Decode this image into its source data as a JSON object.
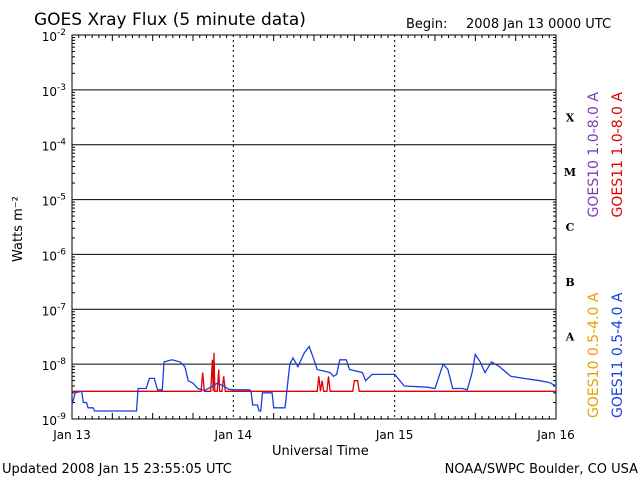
{
  "header": {
    "title": "GOES Xray Flux (5 minute data)",
    "begin_label": "Begin:",
    "begin_value": "2008 Jan 13 0000 UTC"
  },
  "footer": {
    "updated": "Updated 2008 Jan 15 23:55:05 UTC",
    "credit": "NOAA/SWPC Boulder, CO USA"
  },
  "chart_data": {
    "type": "line",
    "title": "GOES Xray Flux (5 minute data)",
    "xlabel": "Universal Time",
    "ylabel": "Watts m⁻²",
    "yscale": "log",
    "ylim": [
      1e-09,
      0.01
    ],
    "xlim": [
      0,
      3
    ],
    "x_ticks": [
      {
        "x": 0,
        "label": "Jan 13"
      },
      {
        "x": 1,
        "label": "Jan 14"
      },
      {
        "x": 2,
        "label": "Jan 15"
      },
      {
        "x": 3,
        "label": "Jan 16"
      }
    ],
    "y_ticks": [
      {
        "exp": -9,
        "base": "10",
        "sup": "-9"
      },
      {
        "exp": -8,
        "base": "10",
        "sup": "-8"
      },
      {
        "exp": -7,
        "base": "10",
        "sup": "-7"
      },
      {
        "exp": -6,
        "base": "10",
        "sup": "-6"
      },
      {
        "exp": -5,
        "base": "10",
        "sup": "-5"
      },
      {
        "exp": -4,
        "base": "10",
        "sup": "-4"
      },
      {
        "exp": -3,
        "base": "10",
        "sup": "-3"
      },
      {
        "exp": -2,
        "base": "10",
        "sup": "-2"
      }
    ],
    "flare_classes": [
      {
        "label": "A",
        "exp": -7.5
      },
      {
        "label": "B",
        "exp": -6.5
      },
      {
        "label": "C",
        "exp": -5.5
      },
      {
        "label": "M",
        "exp": -4.5
      },
      {
        "label": "X",
        "exp": -3.5
      }
    ],
    "grid": true,
    "legend_placement": "right",
    "legend": [
      {
        "text": "GOES10 1.0-8.0 A",
        "color": "#7b3fb3",
        "group": "upper",
        "col": 0
      },
      {
        "text": "GOES11 1.0-8.0 A",
        "color": "#e00000",
        "group": "upper",
        "col": 1
      },
      {
        "text": "GOES10 0.5-4.0 A",
        "color": "#e8a000",
        "group": "lower",
        "col": 0
      },
      {
        "text": "GOES11 0.5-4.0 A",
        "color": "#1a3fe0",
        "group": "lower",
        "col": 1
      }
    ],
    "series": [
      {
        "name": "GOES11 1.0-8.0 A",
        "color": "#e00000",
        "points": [
          [
            0.0,
            3.2e-09
          ],
          [
            0.8,
            3.2e-09
          ],
          [
            0.81,
            7e-09
          ],
          [
            0.82,
            3.2e-09
          ],
          [
            0.86,
            3.2e-09
          ],
          [
            0.87,
            1.2e-08
          ],
          [
            0.875,
            3.2e-09
          ],
          [
            0.88,
            1.6e-08
          ],
          [
            0.885,
            3.2e-09
          ],
          [
            0.9,
            3.2e-09
          ],
          [
            0.91,
            8e-09
          ],
          [
            0.915,
            3.2e-09
          ],
          [
            0.93,
            3.2e-09
          ],
          [
            0.94,
            6e-09
          ],
          [
            0.95,
            3.2e-09
          ],
          [
            1.0,
            3.2e-09
          ],
          [
            1.05,
            3.2e-09
          ],
          [
            1.52,
            3.2e-09
          ],
          [
            1.53,
            6e-09
          ],
          [
            1.54,
            3.2e-09
          ],
          [
            1.55,
            5e-09
          ],
          [
            1.56,
            3.2e-09
          ],
          [
            1.58,
            3.2e-09
          ],
          [
            1.59,
            6e-09
          ],
          [
            1.6,
            3.2e-09
          ],
          [
            1.74,
            3.2e-09
          ],
          [
            1.75,
            5e-09
          ],
          [
            1.77,
            5e-09
          ],
          [
            1.78,
            3.2e-09
          ],
          [
            3.0,
            3.2e-09
          ]
        ]
      },
      {
        "name": "GOES11 0.5-4.0 A",
        "color": "#1a3fe0",
        "points": [
          [
            0.0,
            1.8e-09
          ],
          [
            0.02,
            3e-09
          ],
          [
            0.06,
            3.2e-09
          ],
          [
            0.07,
            2e-09
          ],
          [
            0.09,
            2e-09
          ],
          [
            0.1,
            1.6e-09
          ],
          [
            0.13,
            1.6e-09
          ],
          [
            0.14,
            1.4e-09
          ],
          [
            0.4,
            1.4e-09
          ],
          [
            0.41,
            3.6e-09
          ],
          [
            0.46,
            3.6e-09
          ],
          [
            0.48,
            5.5e-09
          ],
          [
            0.51,
            5.5e-09
          ],
          [
            0.53,
            3.4e-09
          ],
          [
            0.56,
            3.4e-09
          ],
          [
            0.57,
            1.1e-08
          ],
          [
            0.62,
            1.2e-08
          ],
          [
            0.67,
            1.1e-08
          ],
          [
            0.7,
            9e-09
          ],
          [
            0.72,
            5e-09
          ],
          [
            0.75,
            4.5e-09
          ],
          [
            0.78,
            3.6e-09
          ],
          [
            0.82,
            3.3e-09
          ],
          [
            0.86,
            3.8e-09
          ],
          [
            0.9,
            4.5e-09
          ],
          [
            0.94,
            4e-09
          ],
          [
            0.97,
            3.5e-09
          ],
          [
            1.0,
            3.4e-09
          ],
          [
            1.1,
            3.4e-09
          ],
          [
            1.11,
            3.2e-09
          ],
          [
            1.12,
            1.8e-09
          ],
          [
            1.15,
            1.8e-09
          ],
          [
            1.16,
            1.4e-09
          ],
          [
            1.17,
            1.4e-09
          ],
          [
            1.18,
            3e-09
          ],
          [
            1.24,
            3e-09
          ],
          [
            1.25,
            1.6e-09
          ],
          [
            1.32,
            1.6e-09
          ],
          [
            1.35,
            1e-08
          ],
          [
            1.37,
            1.3e-08
          ],
          [
            1.4,
            9e-09
          ],
          [
            1.44,
            1.6e-08
          ],
          [
            1.47,
            2.1e-08
          ],
          [
            1.5,
            1.2e-08
          ],
          [
            1.52,
            8e-09
          ],
          [
            1.6,
            7e-09
          ],
          [
            1.62,
            6e-09
          ],
          [
            1.64,
            6.5e-09
          ],
          [
            1.66,
            1.2e-08
          ],
          [
            1.7,
            1.2e-08
          ],
          [
            1.72,
            8e-09
          ],
          [
            1.8,
            7e-09
          ],
          [
            1.82,
            5e-09
          ],
          [
            1.86,
            6.5e-09
          ],
          [
            1.9,
            6.5e-09
          ],
          [
            1.95,
            6.5e-09
          ],
          [
            2.0,
            6.5e-09
          ],
          [
            2.06,
            4e-09
          ],
          [
            2.2,
            3.8e-09
          ],
          [
            2.25,
            3.6e-09
          ],
          [
            2.3,
            1e-08
          ],
          [
            2.33,
            8e-09
          ],
          [
            2.36,
            3.6e-09
          ],
          [
            2.42,
            3.6e-09
          ],
          [
            2.45,
            3.4e-09
          ],
          [
            2.48,
            7e-09
          ],
          [
            2.5,
            1.5e-08
          ],
          [
            2.53,
            1.1e-08
          ],
          [
            2.56,
            7e-09
          ],
          [
            2.6,
            1.1e-08
          ],
          [
            2.65,
            9e-09
          ],
          [
            2.72,
            6e-09
          ],
          [
            2.8,
            5.5e-09
          ],
          [
            2.9,
            5e-09
          ],
          [
            2.96,
            4.6e-09
          ],
          [
            3.0,
            4e-09
          ]
        ]
      }
    ]
  }
}
